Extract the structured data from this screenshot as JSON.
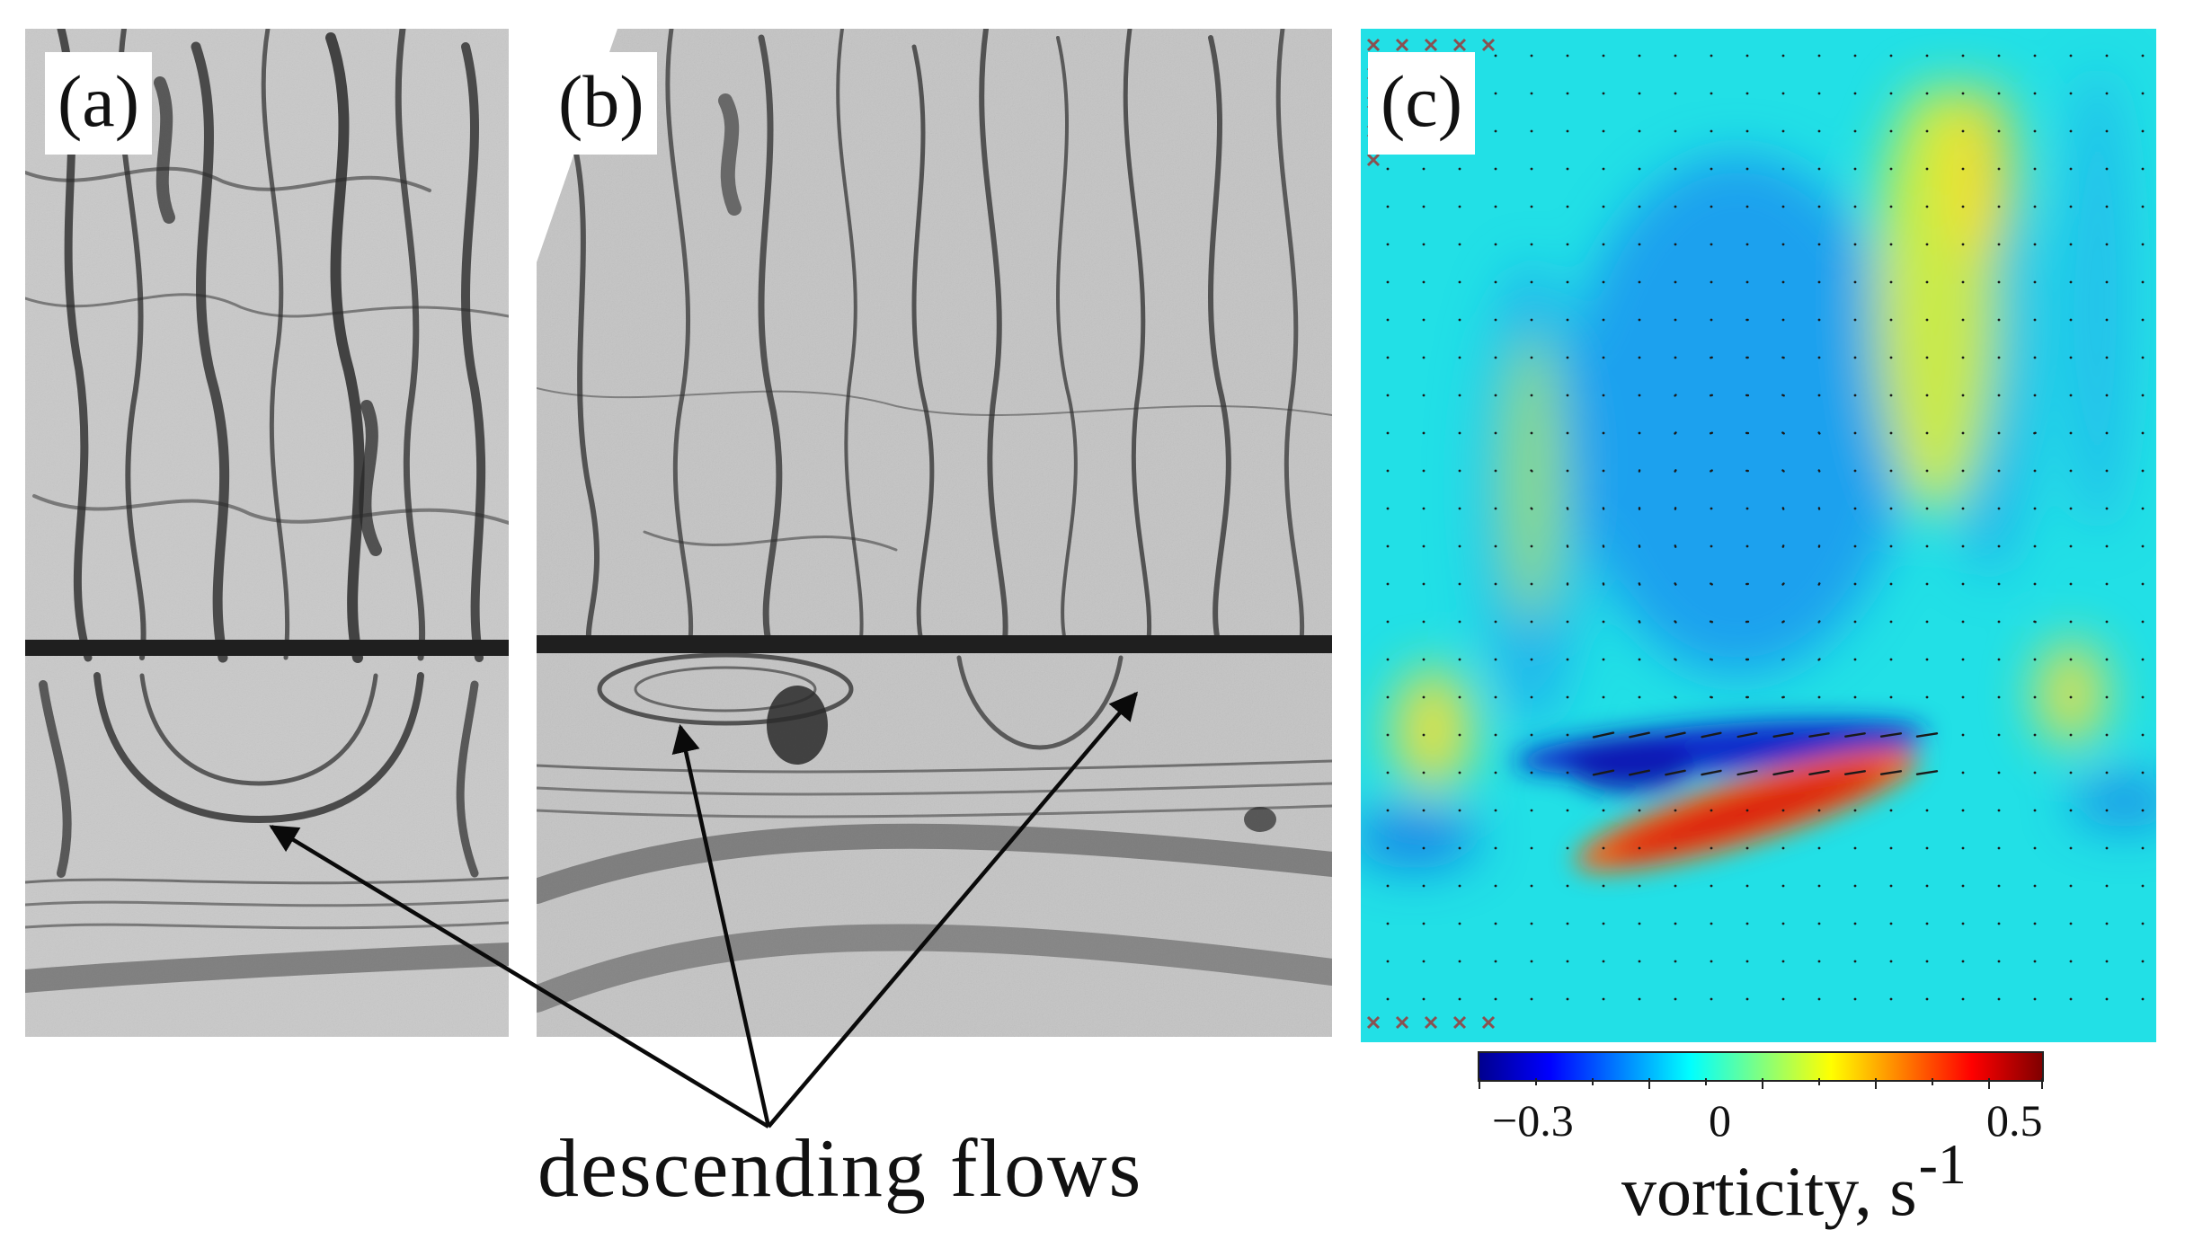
{
  "panels": {
    "a": {
      "label": "(a)"
    },
    "b": {
      "label": "(b)"
    },
    "c": {
      "label": "(c)"
    }
  },
  "annotation": {
    "text": "descending flows"
  },
  "colorbar": {
    "title_main": "vorticity, s",
    "title_sup": "-1",
    "ticks": [
      "−0.3",
      "0",
      "0.5"
    ],
    "range": [
      -0.45,
      0.55
    ],
    "colormap": [
      "#00008f",
      "#0000ff",
      "#0080ff",
      "#00ffff",
      "#80ff80",
      "#ffff00",
      "#ff8000",
      "#ff0000",
      "#800000"
    ]
  },
  "colors": {
    "background_c": "#22e0e6",
    "photo_base": "#c8c8c8",
    "photo_dark": "#303030"
  }
}
